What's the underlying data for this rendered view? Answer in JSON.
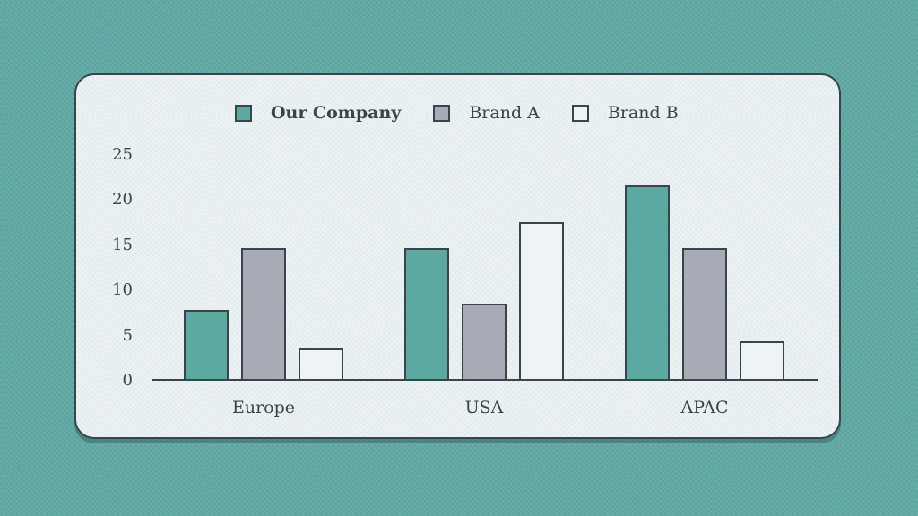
{
  "theme": {
    "background": "#5fa8a4",
    "card_background": "#edf2f2",
    "ink": "#3a444c"
  },
  "chart_data": {
    "type": "bar",
    "categories": [
      "Europe",
      "USA",
      "APAC"
    ],
    "series": [
      {
        "name": "Our Company",
        "color": "#5ca9a2",
        "values": [
          7.8,
          14.7,
          21.6
        ]
      },
      {
        "name": "Brand A",
        "color": "#a8abb5",
        "values": [
          14.7,
          8.5,
          14.7
        ]
      },
      {
        "name": "Brand B",
        "color": "#eef3f5",
        "values": [
          3.6,
          17.6,
          4.4
        ]
      }
    ],
    "yticks": [
      0,
      5,
      10,
      15,
      20,
      25
    ],
    "ylim": [
      0,
      25
    ],
    "xlabel": "",
    "ylabel": "",
    "grid": false,
    "legend_position": "top"
  }
}
